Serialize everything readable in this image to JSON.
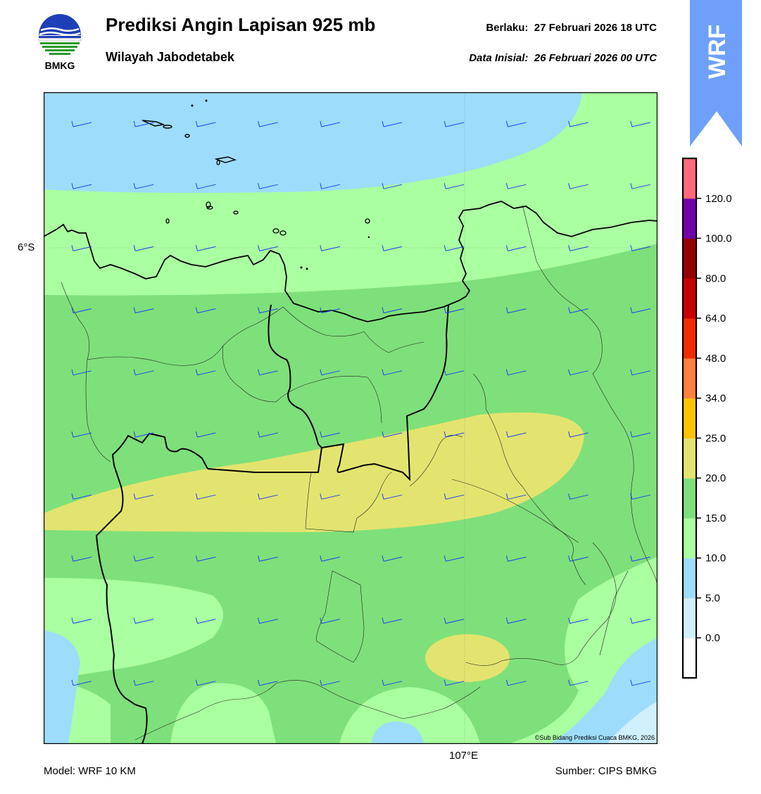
{
  "header": {
    "title": "Prediksi Angin Lapisan 925 mb",
    "subtitle": "Wilayah Jabodetabek",
    "valid_label": "Berlaku:",
    "valid_time": "27 Februari 2026 18 UTC",
    "init_label": "Data Inisial:",
    "init_time": "26 Februari 2026 00 UTC"
  },
  "logo": {
    "icon": "bmkg-logo-icon",
    "text": "BMKG"
  },
  "banner": {
    "text": "WRF",
    "color": "#6ea0fa",
    "icon": "up-arrow-banner-icon"
  },
  "map": {
    "lat_label": "6°S",
    "lon_label": "107°E",
    "copyright": "©Sub Bidang Prediksi Cuaca BMKG, 2026",
    "barb_color": "#1f3ff5",
    "speed_zones_kt": [
      "5–10",
      "10–15",
      "15–20",
      "20–25"
    ]
  },
  "colorbar": {
    "labels": [
      "0.0",
      "5.0",
      "10.0",
      "15.0",
      "20.0",
      "25.0",
      "34.0",
      "48.0",
      "64.0",
      "80.0",
      "100.0",
      "120.0"
    ],
    "colors": [
      "#ffffff",
      "#cff0fc",
      "#9edcfb",
      "#aaffa0",
      "#7ee07a",
      "#e3e46f",
      "#ffc300",
      "#ff8040",
      "#f22c00",
      "#c80000",
      "#960000",
      "#7300a8",
      "#ff6a7d"
    ]
  },
  "footer": {
    "model": "Model: WRF 10 KM",
    "source": "Sumber: CIPS BMKG"
  }
}
